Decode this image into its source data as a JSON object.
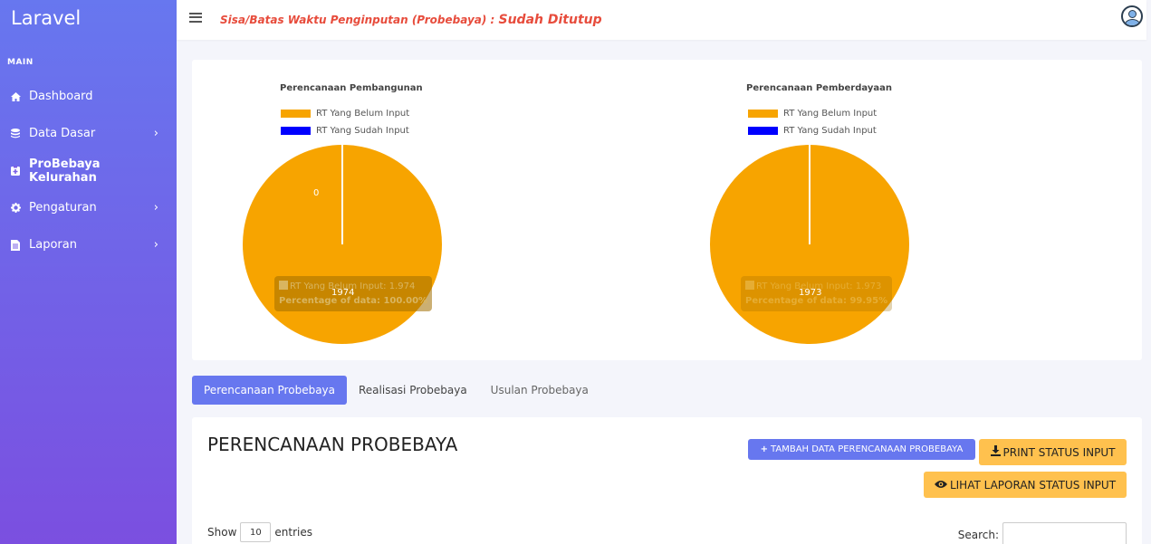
{
  "app": {
    "brand": "Laravel"
  },
  "sidebar": {
    "section_label": "MAIN",
    "items": [
      {
        "label": "Dashboard",
        "icon": "home-icon",
        "chevron": ""
      },
      {
        "label": "Data Dasar",
        "icon": "database-icon",
        "chevron": "›"
      },
      {
        "label": "ProBebaya Kelurahan",
        "icon": "clipboard-icon",
        "chevron": ""
      },
      {
        "label": "Pengaturan",
        "icon": "gear-icon",
        "chevron": "›"
      },
      {
        "label": "Laporan",
        "icon": "file-icon",
        "chevron": "›"
      }
    ]
  },
  "topbar": {
    "deadline_label": "Sisa/Batas Waktu Penginputan (Probebaya) : ",
    "deadline_status": "Sudah Ditutup"
  },
  "charts": [
    {
      "title": "Perencanaan Pembangunan",
      "legend": [
        "RT Yang Belum Input",
        "RT Yang Sudah Input"
      ],
      "slice_label": "1974",
      "zero_label": "0",
      "tooltip_line1": "RT Yang Belum Input: 1.974",
      "tooltip_line2": "Percentage of data: 100.00%"
    },
    {
      "title": "Perencanaan Pemberdayaan",
      "legend": [
        "RT Yang Belum Input",
        "RT Yang Sudah Input"
      ],
      "slice_label": "1973",
      "tooltip_line1": "RT Yang Belum Input: 1.973",
      "tooltip_line2": "Percentage of data: 99.95%"
    }
  ],
  "chart_data": [
    {
      "type": "pie",
      "title": "Perencanaan Pembangunan",
      "categories": [
        "RT Yang Belum Input",
        "RT Yang Sudah Input"
      ],
      "values": [
        1974,
        0
      ],
      "colors": [
        "#f7a400",
        "#0000ff"
      ],
      "legend": "top-left"
    },
    {
      "type": "pie",
      "title": "Perencanaan Pemberdayaan",
      "categories": [
        "RT Yang Belum Input",
        "RT Yang Sudah Input"
      ],
      "values": [
        1973,
        1
      ],
      "colors": [
        "#f7a400",
        "#0000ff"
      ],
      "legend": "top-left"
    }
  ],
  "tabs": [
    "Perencanaan Probebaya",
    "Realisasi Probebaya",
    "Usulan Probebaya"
  ],
  "main": {
    "heading": "PERENCANAAN PROBEBAYA",
    "add_button": "TAMBAH DATA PERENCANAAN PROBEBAYA",
    "print_button": "PRINT STATUS INPUT",
    "view_button": "LIHAT LAPORAN STATUS INPUT",
    "show_label": "Show",
    "entries_value": "10",
    "entries_label": "entries",
    "search_label": "Search:"
  },
  "colors": {
    "primary": "#6777ef",
    "warning": "#ffc14e",
    "danger": "#e74c3c",
    "pie_orange": "#f7a400",
    "pie_blue": "#0000ff"
  }
}
